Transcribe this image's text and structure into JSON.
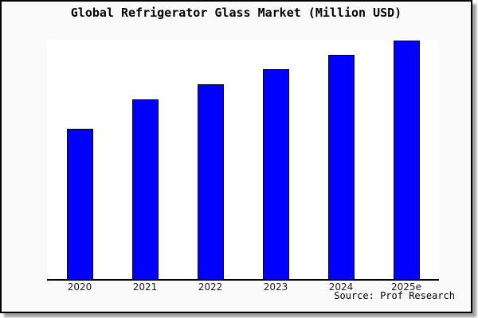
{
  "frame": {
    "background": "#fafafa",
    "plot_background": "#ffffff",
    "border_color": "#000000",
    "axis_color": "#000000"
  },
  "source_label": "Source: Prof Research",
  "chart_data": {
    "type": "bar",
    "title": "Global Refrigerator Glass Market (Million USD)",
    "categories": [
      "2020",
      "2021",
      "2022",
      "2023",
      "2024",
      "2025e"
    ],
    "values": [
      189,
      226,
      245,
      264,
      282,
      300
    ],
    "value_units": "relative bar height (y-axis has no scale labels in source image)",
    "xlabel": "",
    "ylabel": "",
    "ylim": [
      0,
      301
    ],
    "bar_color": "#0000ff",
    "bar_border_color": "#000000",
    "grid": false,
    "legend": false,
    "annotations": [
      "Source: Prof Research"
    ]
  }
}
